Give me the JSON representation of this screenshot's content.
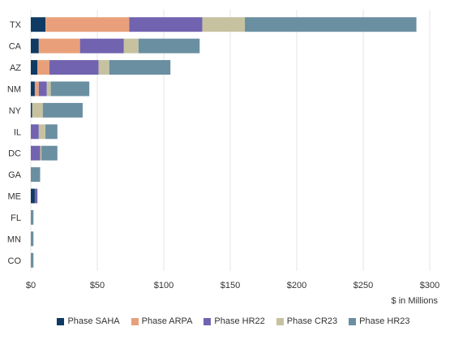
{
  "chart_data": {
    "type": "bar",
    "orientation": "horizontal",
    "stacked": true,
    "categories": [
      "TX",
      "CA",
      "AZ",
      "NM",
      "NY",
      "IL",
      "DC",
      "GA",
      "ME",
      "FL",
      "MN",
      "CO"
    ],
    "series": [
      {
        "name": "Phase SAHA",
        "color": "#0f3a63",
        "values": [
          11,
          6,
          5,
          3,
          1,
          0,
          0,
          0,
          3,
          0,
          0,
          0
        ]
      },
      {
        "name": "Phase ARPA",
        "color": "#e9a07a",
        "values": [
          63,
          31,
          9,
          3,
          0,
          0,
          0,
          0,
          0,
          0,
          0,
          0
        ]
      },
      {
        "name": "Phase HR22",
        "color": "#7263b0",
        "values": [
          55,
          33,
          37,
          6,
          0,
          6,
          7,
          0,
          2,
          0,
          0,
          0
        ]
      },
      {
        "name": "Phase CR23",
        "color": "#c6c2a0",
        "values": [
          32,
          11,
          8,
          3,
          8,
          5,
          1,
          0,
          0,
          0,
          0,
          0
        ]
      },
      {
        "name": "Phase HR23",
        "color": "#6a8fa1",
        "values": [
          129,
          46,
          46,
          29,
          30,
          9,
          12,
          7,
          0,
          2,
          2,
          2
        ]
      }
    ],
    "xlim": [
      0,
      300
    ],
    "xticks": [
      "$0",
      "$50",
      "$100",
      "$150",
      "$200",
      "$250",
      "$300"
    ],
    "xlabel": "$ in Millions",
    "ylabel": "",
    "title": "",
    "grid": "vertical",
    "legend_position": "bottom"
  }
}
